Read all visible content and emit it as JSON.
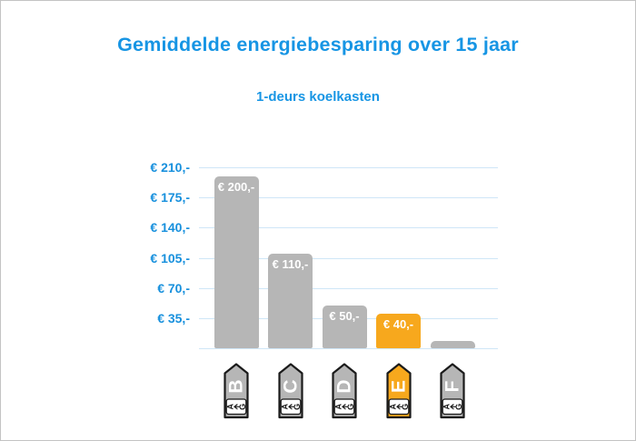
{
  "chart_data": {
    "type": "bar",
    "title": "Gemiddelde energiebesparing over 15 jaar",
    "subtitle": "1-deurs koelkasten",
    "categories": [
      "B",
      "C",
      "D",
      "E",
      "F"
    ],
    "values": [
      200,
      110,
      50,
      40,
      8
    ],
    "bar_value_labels": [
      "€ 200,-",
      "€ 110,-",
      "€ 50,-",
      "€ 40,-",
      ""
    ],
    "highlight_index": 3,
    "y_ticks": [
      {
        "value": 210,
        "label": "€ 210,-"
      },
      {
        "value": 175,
        "label": "€ 175,-"
      },
      {
        "value": 140,
        "label": "€ 140,-"
      },
      {
        "value": 105,
        "label": "€ 105,-"
      },
      {
        "value": 70,
        "label": "€ 70,-"
      },
      {
        "value": 35,
        "label": "€ 35,-"
      }
    ],
    "ylim": [
      0,
      210
    ],
    "grid": true,
    "legend": false,
    "xlabel": "",
    "ylabel": "",
    "x_axis_icons": {
      "type": "eu-energy-label-arrow",
      "scale_min": "A",
      "scale_max": "G",
      "arrow_direction": "toward-A"
    }
  },
  "colors": {
    "title_text": "#1795e4",
    "axis_label_text": "#1790dd",
    "gridline": "#cfe6f7",
    "bar_default": "#b6b6b6",
    "bar_highlight": "#f7a81d",
    "bar_label_text": "#ffffff",
    "icon_default": "#b6b6b6",
    "icon_highlight": "#f7a81d",
    "icon_outline": "#1a1a1a",
    "icon_letter_text": "#ffffff",
    "icon_scale_text": "#1a1a1a",
    "background": "#ffffff",
    "frame_border": "#c3c3c3"
  }
}
